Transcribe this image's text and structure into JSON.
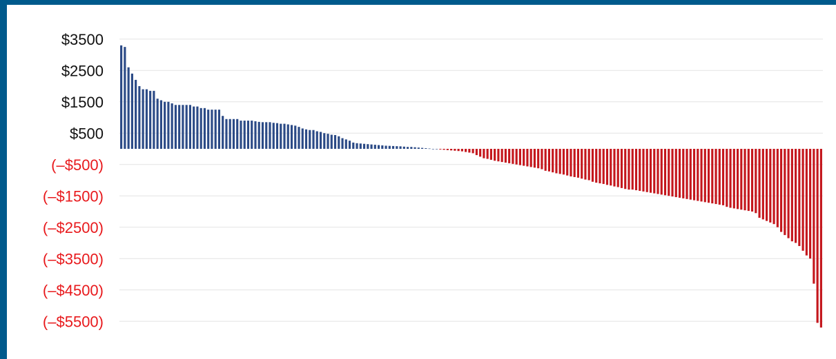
{
  "chart_data": {
    "type": "bar",
    "title": "",
    "xlabel": "",
    "ylabel": "",
    "ylim": [
      -5700,
      3500
    ],
    "ytick_labels": [
      {
        "value": 3500,
        "label": "$3500"
      },
      {
        "value": 2500,
        "label": "$2500"
      },
      {
        "value": 1500,
        "label": "$1500"
      },
      {
        "value": 500,
        "label": "$500"
      },
      {
        "value": -500,
        "label": "(–$500)"
      },
      {
        "value": -1500,
        "label": "(–$1500)"
      },
      {
        "value": -2500,
        "label": "(–$2500)"
      },
      {
        "value": -3500,
        "label": "(–$3500)"
      },
      {
        "value": -4500,
        "label": "(–$4500)"
      },
      {
        "value": -5500,
        "label": "(–$5500)"
      }
    ],
    "colors": {
      "positive": "#2b4a86",
      "negative": "#c4161c",
      "negative_label": "#e8191c",
      "positive_label": "#111111",
      "grid": "#e3e3e3",
      "border": "#005a8c"
    },
    "grid": true,
    "legend": "none",
    "values": [
      3300,
      3250,
      2600,
      2400,
      2200,
      2000,
      1900,
      1900,
      1850,
      1850,
      1600,
      1550,
      1500,
      1500,
      1450,
      1400,
      1400,
      1400,
      1400,
      1400,
      1350,
      1350,
      1300,
      1300,
      1250,
      1250,
      1250,
      1250,
      1050,
      950,
      950,
      950,
      950,
      900,
      900,
      900,
      900,
      880,
      860,
      850,
      850,
      850,
      830,
      820,
      800,
      800,
      780,
      760,
      740,
      700,
      650,
      620,
      600,
      600,
      560,
      540,
      500,
      480,
      450,
      440,
      400,
      340,
      300,
      260,
      200,
      180,
      170,
      160,
      150,
      140,
      130,
      120,
      110,
      100,
      95,
      90,
      85,
      80,
      70,
      60,
      60,
      50,
      40,
      30,
      20,
      10,
      0,
      0,
      -20,
      -30,
      -40,
      -50,
      -60,
      -70,
      -80,
      -100,
      -120,
      -140,
      -200,
      -250,
      -300,
      -320,
      -350,
      -380,
      -400,
      -420,
      -440,
      -460,
      -480,
      -500,
      -520,
      -540,
      -560,
      -580,
      -600,
      -620,
      -650,
      -700,
      -720,
      -750,
      -780,
      -800,
      -820,
      -850,
      -880,
      -900,
      -920,
      -950,
      -980,
      -1000,
      -1050,
      -1080,
      -1100,
      -1120,
      -1150,
      -1170,
      -1200,
      -1220,
      -1250,
      -1280,
      -1300,
      -1300,
      -1320,
      -1340,
      -1360,
      -1380,
      -1400,
      -1420,
      -1440,
      -1460,
      -1480,
      -1500,
      -1520,
      -1540,
      -1560,
      -1580,
      -1600,
      -1620,
      -1640,
      -1660,
      -1680,
      -1700,
      -1720,
      -1740,
      -1760,
      -1780,
      -1800,
      -1850,
      -1880,
      -1900,
      -1920,
      -1940,
      -1960,
      -1980,
      -2000,
      -2050,
      -2200,
      -2250,
      -2300,
      -2350,
      -2400,
      -2500,
      -2650,
      -2750,
      -2850,
      -2950,
      -3000,
      -3100,
      -3250,
      -3400,
      -3500,
      -4300,
      -5550,
      -5700
    ]
  }
}
